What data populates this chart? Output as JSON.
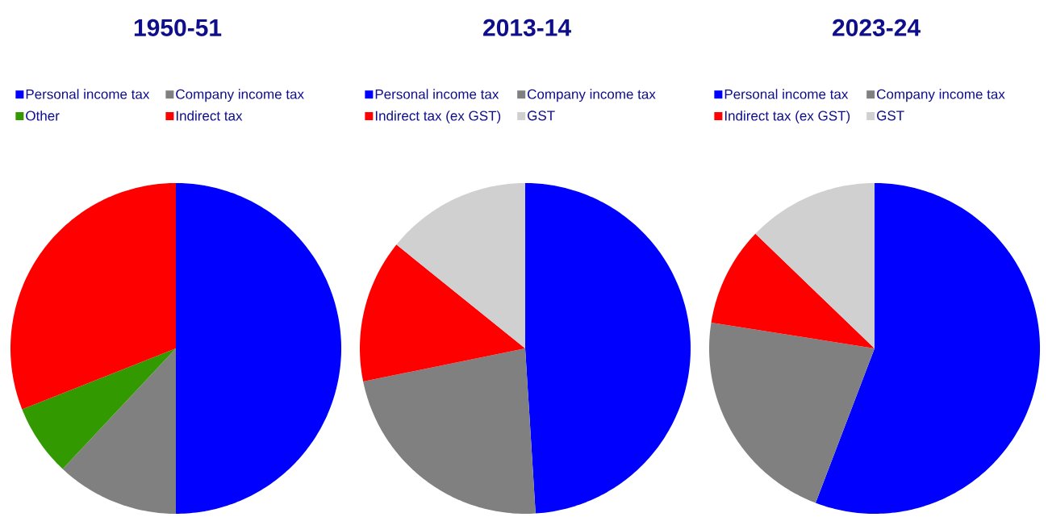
{
  "chart_data": [
    {
      "type": "pie",
      "title": "1950-51",
      "categories": [
        "Personal income tax",
        "Company income tax",
        "Other",
        "Indirect tax"
      ],
      "values": [
        50,
        12,
        7,
        31
      ],
      "colors": [
        "#0000ff",
        "#808080",
        "#339900",
        "#ff0000"
      ],
      "legend": "top"
    },
    {
      "type": "pie",
      "title": "2013-14",
      "categories": [
        "Personal income tax",
        "Company income tax",
        "Indirect tax (ex GST)",
        "GST"
      ],
      "values": [
        49,
        22.8,
        14,
        14.2
      ],
      "colors": [
        "#0000ff",
        "#808080",
        "#ff0000",
        "#d0d0d0"
      ],
      "legend": "top"
    },
    {
      "type": "pie",
      "title": "2023-24",
      "categories": [
        "Personal income tax",
        "Company income tax",
        "Indirect tax (ex GST)",
        "GST"
      ],
      "values": [
        55.8,
        21.7,
        9.7,
        12.8
      ],
      "colors": [
        "#0000ff",
        "#808080",
        "#ff0000",
        "#d0d0d0"
      ],
      "legend": "top"
    }
  ]
}
